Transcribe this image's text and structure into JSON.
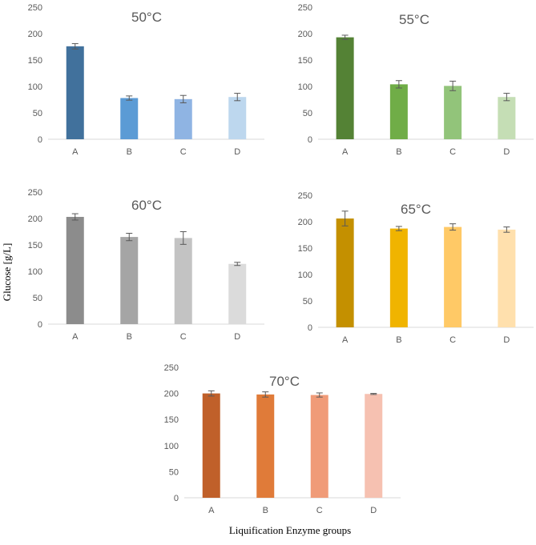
{
  "figure": {
    "ylabel": "Glucose [g/L]",
    "xlabel": "Liquification Enzyme groups"
  },
  "chart_data": [
    {
      "type": "bar",
      "title": "50°C",
      "categories": [
        "A",
        "B",
        "C",
        "D"
      ],
      "values": [
        176,
        78,
        76,
        80
      ],
      "errors": [
        5,
        4,
        7,
        7
      ],
      "colors": [
        "#41719c",
        "#5b9bd5",
        "#8fb4e3",
        "#bdd7ee"
      ],
      "ylim": [
        0,
        250
      ],
      "yticks": [
        0,
        50,
        100,
        150,
        200,
        250
      ]
    },
    {
      "type": "bar",
      "title": "55°C",
      "categories": [
        "A",
        "B",
        "C",
        "D"
      ],
      "values": [
        193,
        104,
        101,
        80
      ],
      "errors": [
        4,
        7,
        9,
        7
      ],
      "colors": [
        "#548235",
        "#70ad47",
        "#92c47a",
        "#c5deb5"
      ],
      "ylim": [
        0,
        250
      ],
      "yticks": [
        0,
        50,
        100,
        150,
        200,
        250
      ]
    },
    {
      "type": "bar",
      "title": "60°C",
      "categories": [
        "A",
        "B",
        "C",
        "D"
      ],
      "values": [
        203,
        165,
        163,
        114
      ],
      "errors": [
        6,
        7,
        12,
        3
      ],
      "colors": [
        "#8c8c8c",
        "#a5a5a5",
        "#c3c3c3",
        "#dbdbdb"
      ],
      "ylim": [
        0,
        250
      ],
      "yticks": [
        0,
        50,
        100,
        150,
        200,
        250
      ]
    },
    {
      "type": "bar",
      "title": "65°C",
      "categories": [
        "A",
        "B",
        "C",
        "D"
      ],
      "values": [
        206,
        187,
        190,
        185
      ],
      "errors": [
        14,
        4,
        6,
        5
      ],
      "colors": [
        "#c49000",
        "#f0b400",
        "#ffc966",
        "#ffe0ad"
      ],
      "ylim": [
        0,
        250
      ],
      "yticks": [
        0,
        50,
        100,
        150,
        200,
        250
      ]
    },
    {
      "type": "bar",
      "title": "70°C",
      "categories": [
        "A",
        "B",
        "C",
        "D"
      ],
      "values": [
        200,
        198,
        197,
        199
      ],
      "errors": [
        5,
        5,
        4,
        1
      ],
      "colors": [
        "#c0602a",
        "#e07b39",
        "#f09b78",
        "#f6c1b1"
      ],
      "ylim": [
        0,
        250
      ],
      "yticks": [
        0,
        50,
        100,
        150,
        200,
        250
      ]
    }
  ]
}
